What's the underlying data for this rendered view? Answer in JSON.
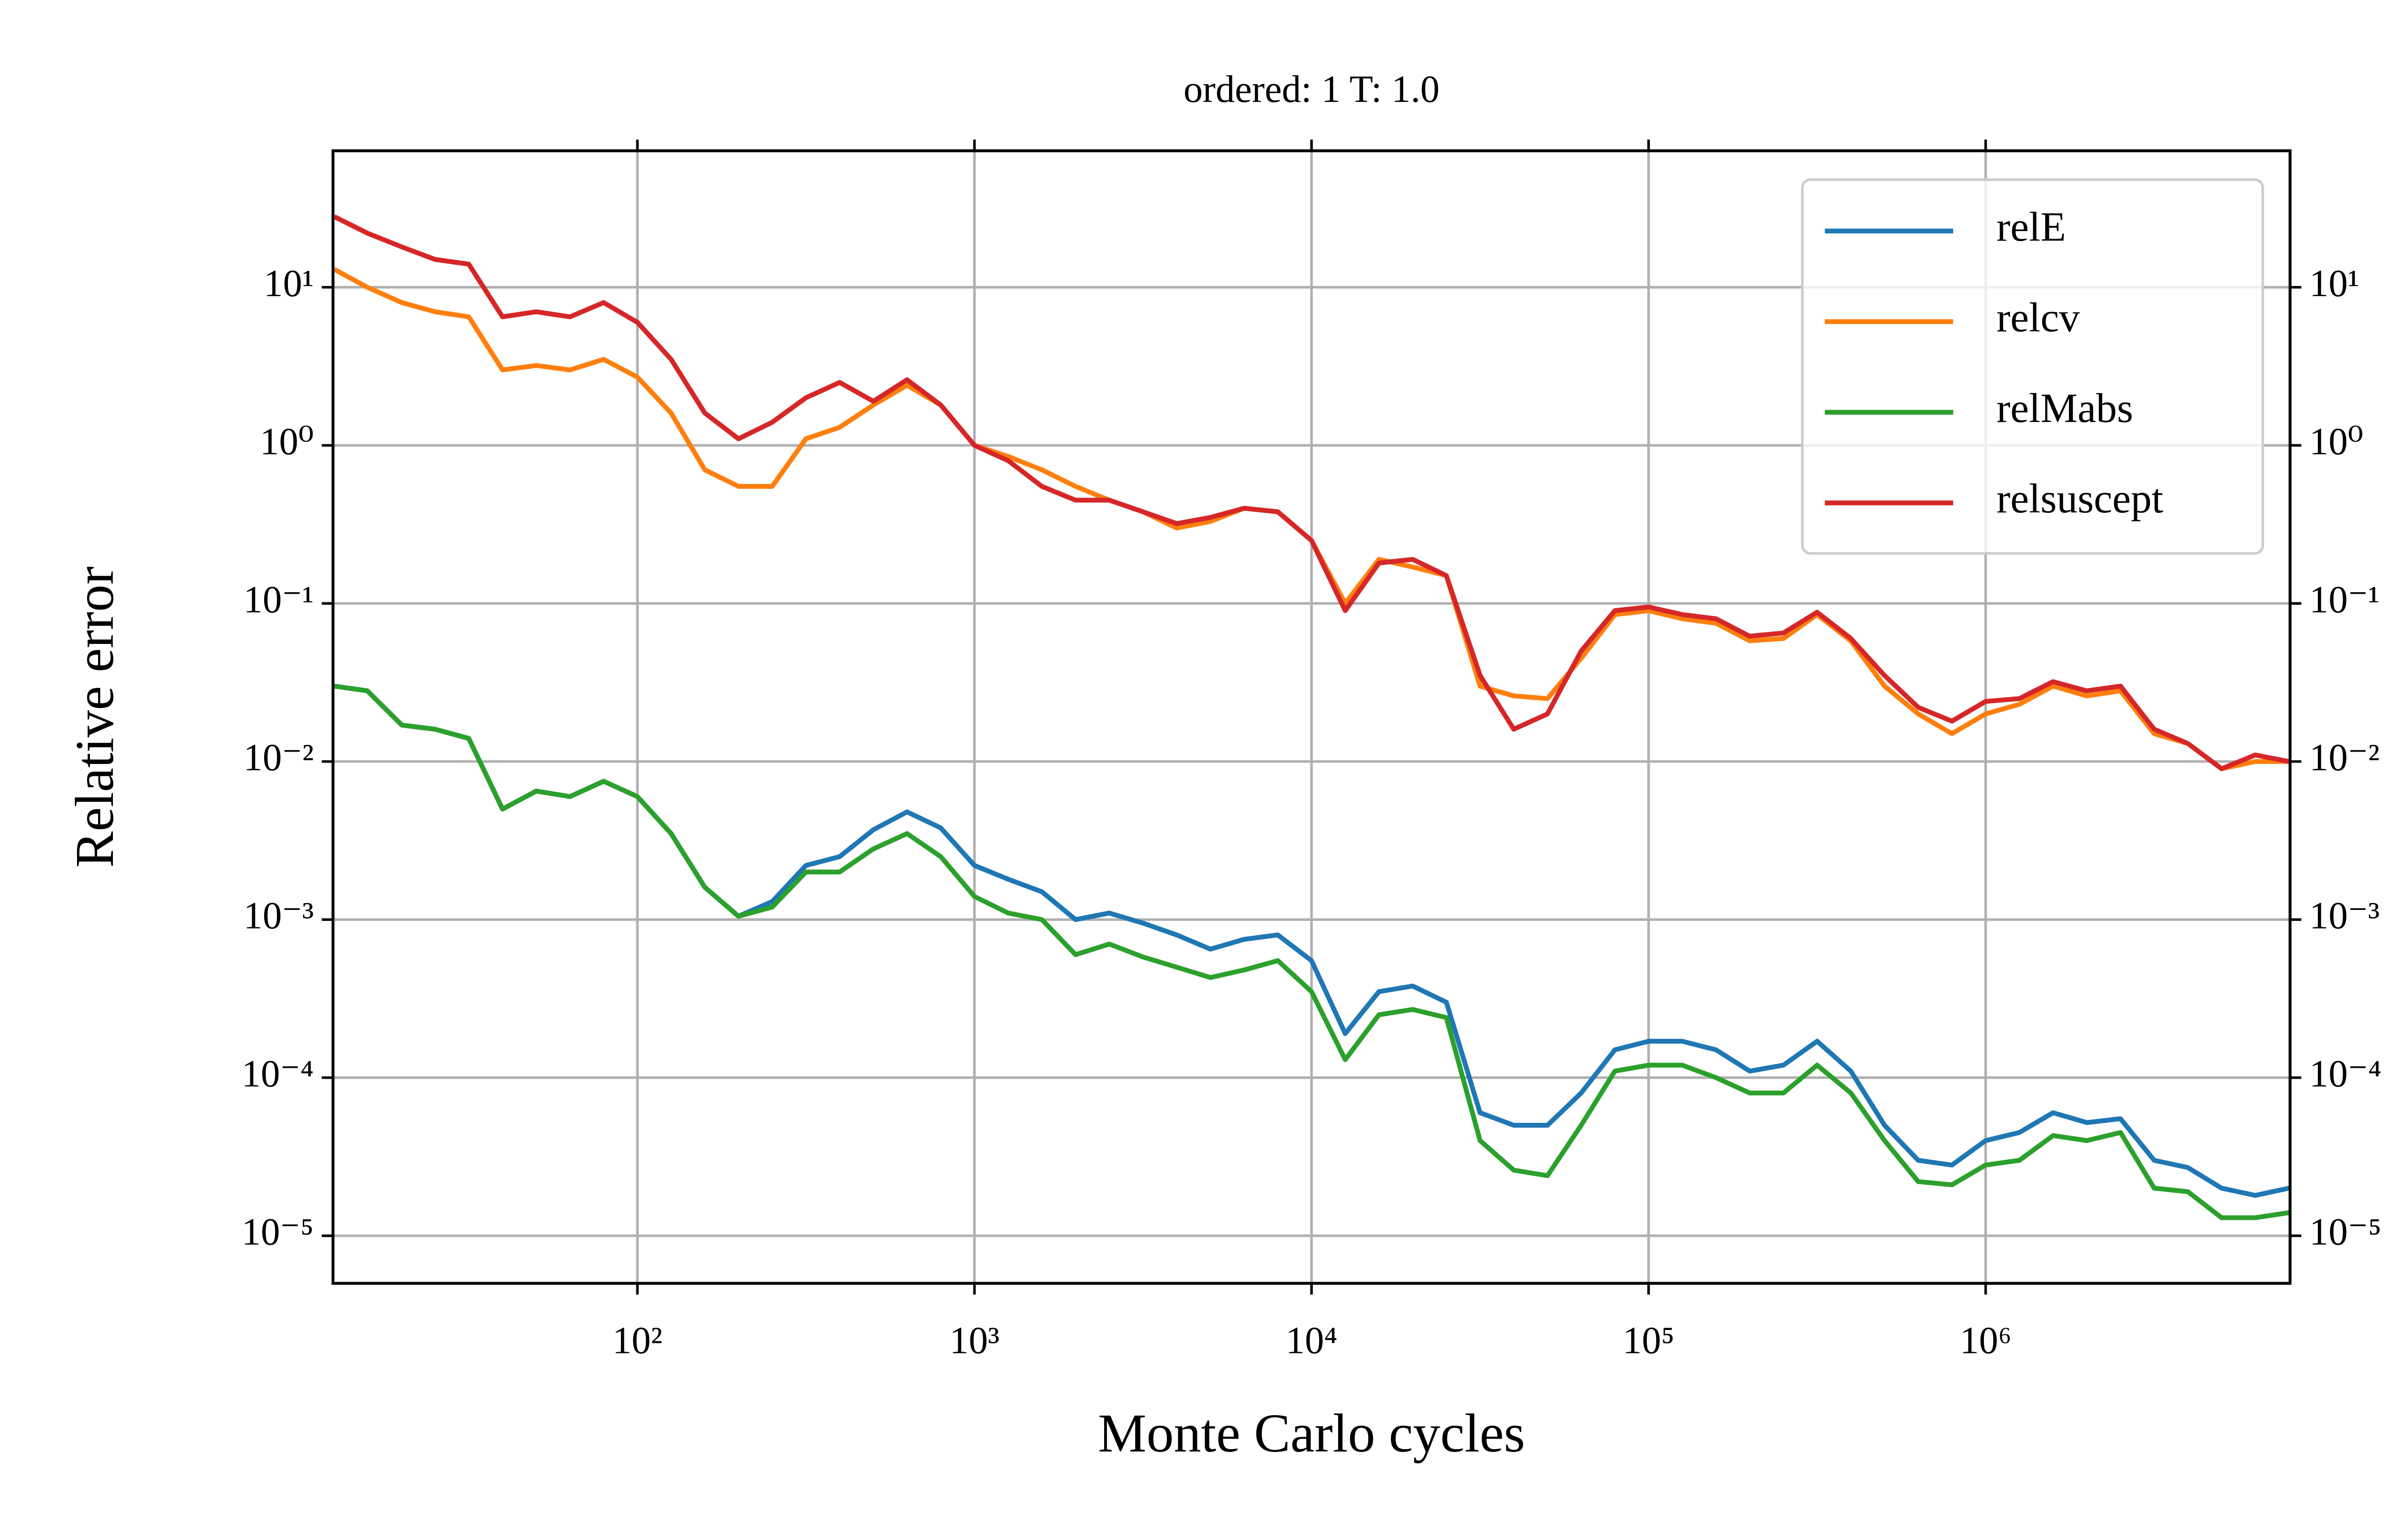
{
  "chart_data": {
    "type": "line",
    "title": "ordered: 1 T: 1.0",
    "xlabel": "Monte Carlo cycles",
    "ylabel": "Relative error",
    "xscale": "log",
    "yscale": "log",
    "grid": true,
    "legend": "upper right",
    "xlim": [
      12.5,
      8000000
    ],
    "ylim": [
      5e-06,
      73
    ],
    "xticks": [
      {
        "value": 100,
        "label": "10²"
      },
      {
        "value": 1000,
        "label": "10³"
      },
      {
        "value": 10000,
        "label": "10⁴"
      },
      {
        "value": 100000,
        "label": "10⁵"
      },
      {
        "value": 1000000,
        "label": "10⁶"
      }
    ],
    "yticks": [
      {
        "value": 10,
        "label": "10¹"
      },
      {
        "value": 1,
        "label": "10⁰"
      },
      {
        "value": 0.1,
        "label": "10⁻¹"
      },
      {
        "value": 0.01,
        "label": "10⁻²"
      },
      {
        "value": 0.001,
        "label": "10⁻³"
      },
      {
        "value": 0.0001,
        "label": "10⁻⁴"
      },
      {
        "value": 1e-05,
        "label": "10⁻⁵"
      }
    ],
    "x": [
      12.6,
      15.8,
      20,
      25.1,
      31.6,
      39.8,
      50.1,
      63.1,
      79.4,
      100,
      125.9,
      158.5,
      199.5,
      251.2,
      316.2,
      398.1,
      501.2,
      631,
      794.3,
      1000,
      1259,
      1585,
      1995,
      2512,
      3162,
      3981,
      5012,
      6310,
      7943,
      10000,
      12589,
      15849,
      19953,
      25119,
      31623,
      39811,
      50119,
      63096,
      79433,
      100000,
      125893,
      158489,
      199526,
      251189,
      316228,
      398107,
      501187,
      630957,
      794328,
      1000000,
      1258925,
      1584893,
      1995262,
      2511886,
      3162278,
      3981072,
      5011872,
      6309573,
      7943282
    ],
    "series": [
      {
        "name": "relE",
        "color": "#1f77b4",
        "values": [
          0.03,
          0.028,
          0.017,
          0.016,
          0.014,
          0.005,
          0.0065,
          0.006,
          0.0075,
          0.006,
          0.0035,
          0.0016,
          0.00105,
          0.0013,
          0.0022,
          0.0025,
          0.0037,
          0.0048,
          0.0038,
          0.0022,
          0.0018,
          0.0015,
          0.001,
          0.0011,
          0.00095,
          0.0008,
          0.00065,
          0.00075,
          0.0008,
          0.00055,
          0.00019,
          0.00035,
          0.00038,
          0.0003,
          6e-05,
          5e-05,
          5e-05,
          8e-05,
          0.00015,
          0.00017,
          0.00017,
          0.00015,
          0.00011,
          0.00012,
          0.00017,
          0.00011,
          5e-05,
          3e-05,
          2.8e-05,
          4e-05,
          4.5e-05,
          6e-05,
          5.2e-05,
          5.5e-05,
          3e-05,
          2.7e-05,
          2e-05,
          1.8e-05,
          2e-05
        ]
      },
      {
        "name": "relcv",
        "color": "#ff7f0e",
        "values": [
          13,
          10,
          8,
          7,
          6.5,
          3,
          3.2,
          3,
          3.5,
          2.7,
          1.6,
          0.7,
          0.55,
          0.55,
          1.1,
          1.3,
          1.8,
          2.4,
          1.8,
          1.0,
          0.85,
          0.7,
          0.55,
          0.45,
          0.38,
          0.3,
          0.33,
          0.4,
          0.38,
          0.25,
          0.1,
          0.19,
          0.17,
          0.15,
          0.03,
          0.026,
          0.025,
          0.045,
          0.085,
          0.09,
          0.08,
          0.075,
          0.058,
          0.06,
          0.085,
          0.058,
          0.03,
          0.02,
          0.015,
          0.02,
          0.023,
          0.03,
          0.026,
          0.028,
          0.015,
          0.013,
          0.009,
          0.01,
          0.01
        ]
      },
      {
        "name": "relMabs",
        "color": "#2ca02c",
        "values": [
          0.03,
          0.028,
          0.017,
          0.016,
          0.014,
          0.005,
          0.0065,
          0.006,
          0.0075,
          0.006,
          0.0035,
          0.0016,
          0.00105,
          0.0012,
          0.002,
          0.002,
          0.0028,
          0.0035,
          0.0025,
          0.0014,
          0.0011,
          0.001,
          0.0006,
          0.0007,
          0.00058,
          0.0005,
          0.00043,
          0.00048,
          0.00055,
          0.00035,
          0.00013,
          0.00025,
          0.00027,
          0.00024,
          4e-05,
          2.6e-05,
          2.4e-05,
          5e-05,
          0.00011,
          0.00012,
          0.00012,
          0.0001,
          8e-05,
          8e-05,
          0.00012,
          8e-05,
          4e-05,
          2.2e-05,
          2.1e-05,
          2.8e-05,
          3e-05,
          4.3e-05,
          4e-05,
          4.5e-05,
          2e-05,
          1.9e-05,
          1.3e-05,
          1.3e-05,
          1.4e-05
        ]
      },
      {
        "name": "relsuscept",
        "color": "#d62728",
        "values": [
          28,
          22,
          18,
          15,
          14,
          6.5,
          7,
          6.5,
          8,
          6,
          3.5,
          1.6,
          1.1,
          1.4,
          2,
          2.5,
          1.9,
          2.6,
          1.8,
          1.0,
          0.8,
          0.55,
          0.45,
          0.45,
          0.38,
          0.32,
          0.35,
          0.4,
          0.38,
          0.25,
          0.09,
          0.18,
          0.19,
          0.15,
          0.035,
          0.016,
          0.02,
          0.05,
          0.09,
          0.095,
          0.085,
          0.08,
          0.062,
          0.065,
          0.088,
          0.06,
          0.035,
          0.022,
          0.018,
          0.024,
          0.025,
          0.032,
          0.028,
          0.03,
          0.016,
          0.013,
          0.009,
          0.011,
          0.01
        ]
      }
    ]
  }
}
